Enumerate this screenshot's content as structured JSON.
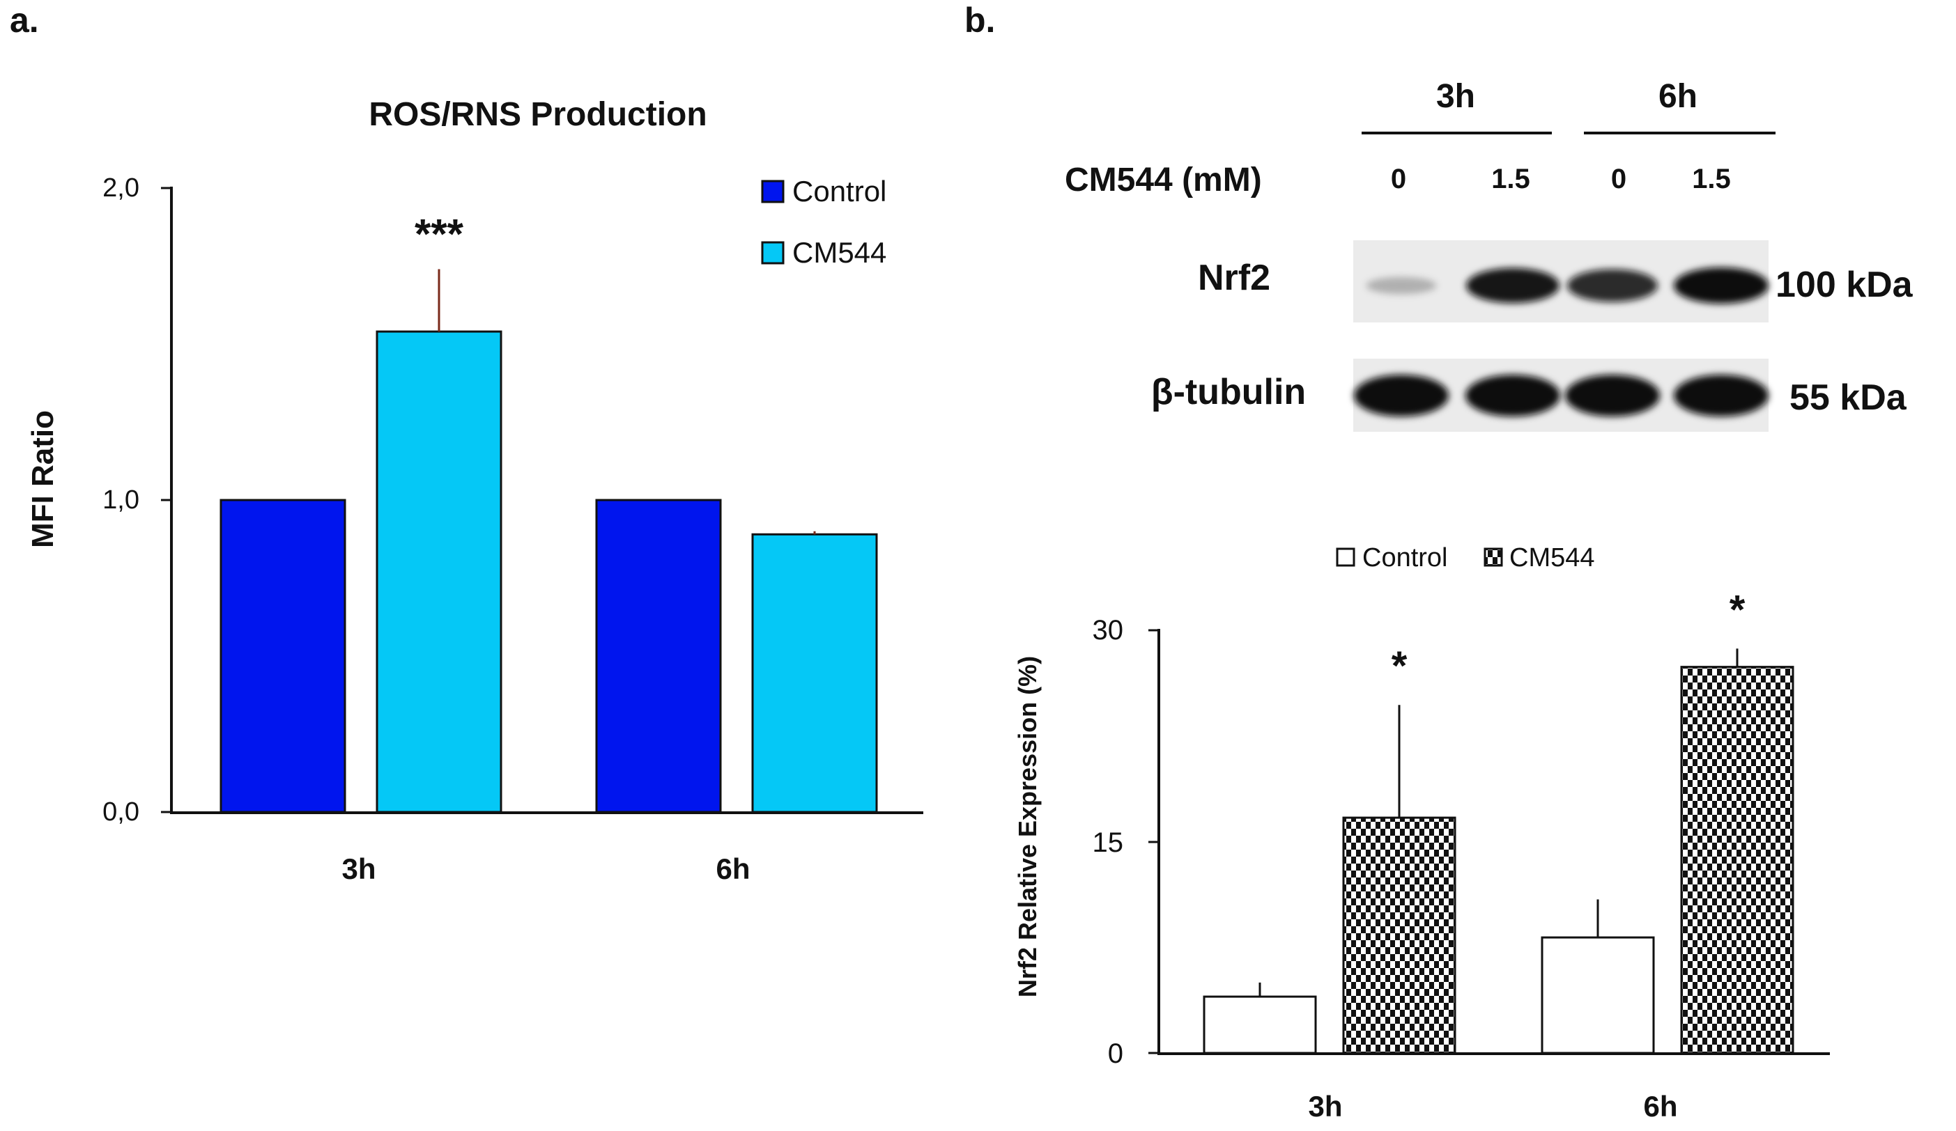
{
  "panel_a": {
    "label": "a."
  },
  "panel_b": {
    "label": "b.",
    "blot": {
      "time_headers": [
        "3h",
        "6h"
      ],
      "dose_label": "CM544 (mM)",
      "doses": [
        "0",
        "1.5",
        "0",
        "1.5"
      ],
      "rows": [
        {
          "name": "Nrf2",
          "size": "100 kDa",
          "intensities": [
            0.12,
            0.95,
            0.85,
            1.0
          ]
        },
        {
          "name": "β-tubulin",
          "size": "55 kDa",
          "intensities": [
            1.0,
            1.0,
            1.0,
            1.0
          ]
        }
      ]
    }
  },
  "chart_data": [
    {
      "type": "bar",
      "title": "ROS/RNS Production",
      "xlabel": "",
      "ylabel": "MFI Ratio",
      "categories": [
        "3h",
        "6h"
      ],
      "ylim": [
        0,
        2
      ],
      "yticks": [
        "0,0",
        "1,0",
        "2,0"
      ],
      "legend_position": "top-right",
      "series": [
        {
          "name": "Control",
          "color": "#0015ee",
          "values": [
            1.0,
            1.0
          ],
          "errors": [
            0,
            0
          ]
        },
        {
          "name": "CM544",
          "color": "#05c8f6",
          "values": [
            1.54,
            0.89
          ],
          "errors": [
            0.2,
            0.01
          ]
        }
      ],
      "annotations": [
        {
          "category": "3h",
          "series": "CM544",
          "text": "***"
        }
      ]
    },
    {
      "type": "bar",
      "title": "",
      "xlabel": "",
      "ylabel": "Nrf2 Relative Expression (%)",
      "categories": [
        "3h",
        "6h"
      ],
      "ylim": [
        0,
        30
      ],
      "yticks": [
        "0",
        "15",
        "30"
      ],
      "legend_position": "top",
      "series": [
        {
          "name": "Control",
          "color": "#ffffff",
          "pattern": "none",
          "values": [
            4,
            8.2
          ],
          "errors": [
            1,
            2.7
          ]
        },
        {
          "name": "CM544",
          "color": "#111111",
          "pattern": "checker",
          "values": [
            16.7,
            27.4
          ],
          "errors": [
            8,
            1.3
          ]
        }
      ],
      "annotations": [
        {
          "category": "3h",
          "series": "CM544",
          "text": "*"
        },
        {
          "category": "6h",
          "series": "CM544",
          "text": "*"
        }
      ]
    }
  ]
}
